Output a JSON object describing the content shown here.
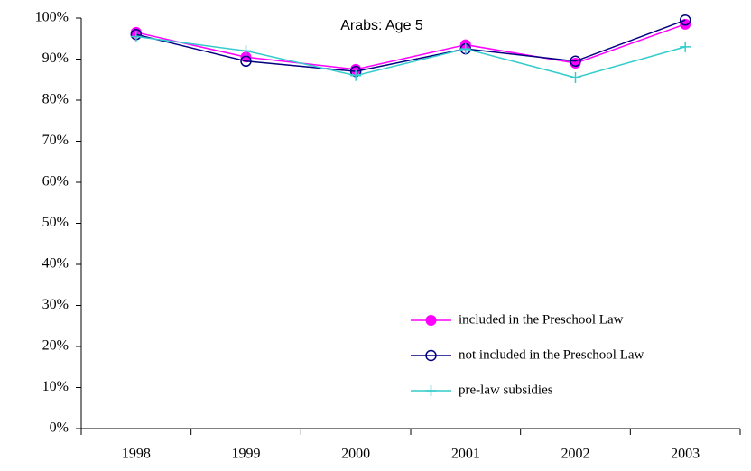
{
  "chart_data": {
    "type": "line",
    "title": "Arabs: Age 5",
    "categories": [
      "1998",
      "1999",
      "2000",
      "2001",
      "2002",
      "2003"
    ],
    "series": [
      {
        "name": "included in the Preschool Law",
        "color": "#ff00ff",
        "marker": "filled-circle",
        "values": [
          96.5,
          90.5,
          87.5,
          93.5,
          89,
          98.5
        ]
      },
      {
        "name": "not included in the Preschool Law",
        "color": "#000080",
        "marker": "open-circle",
        "values": [
          96,
          89.5,
          87,
          92.5,
          89.5,
          99.5
        ]
      },
      {
        "name": "pre-law subsidies",
        "color": "#33cccc",
        "marker": "plus",
        "values": [
          95.5,
          92,
          86,
          92.5,
          85.5,
          93
        ]
      }
    ],
    "ylim": [
      0,
      100
    ],
    "yticks": [
      {
        "value": 0,
        "label": "0%"
      },
      {
        "value": 10,
        "label": "10%"
      },
      {
        "value": 20,
        "label": "20%"
      },
      {
        "value": 30,
        "label": "30%"
      },
      {
        "value": 40,
        "label": "40%"
      },
      {
        "value": 50,
        "label": "50%"
      },
      {
        "value": 60,
        "label": "60%"
      },
      {
        "value": 70,
        "label": "70%"
      },
      {
        "value": 80,
        "label": "80%"
      },
      {
        "value": 90,
        "label": "90%"
      },
      {
        "value": 100,
        "label": "100%"
      }
    ],
    "grid": false,
    "legend": "lower right"
  }
}
